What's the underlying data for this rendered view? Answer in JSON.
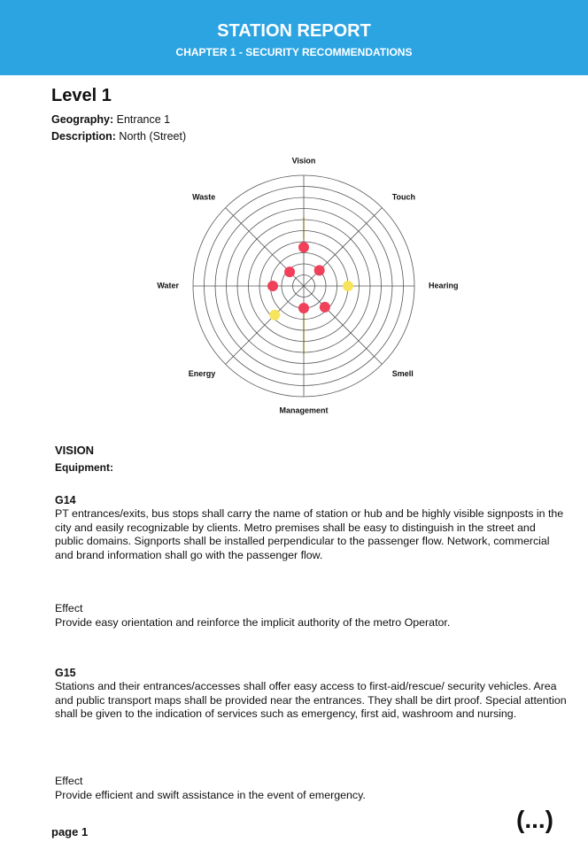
{
  "header": {
    "title": "STATION REPORT",
    "subtitle": "CHAPTER 1 - SECURITY RECOMMENDATIONS"
  },
  "level": "Level 1",
  "geography": {
    "label": "Geography:",
    "value": "Entrance 1"
  },
  "description": {
    "label": "Description:",
    "value": "North (Street)"
  },
  "chart_data": {
    "type": "radar",
    "categories": [
      "Vision",
      "Touch",
      "Hearing",
      "Smell",
      "Management",
      "Energy",
      "Water",
      "Waste"
    ],
    "values": [
      3.5,
      2,
      4,
      2.7,
      2,
      3.7,
      2.8,
      1.8
    ],
    "point_colors": [
      "#f0405a",
      "#f0405a",
      "#f8e45c",
      "#f0405a",
      "#f0405a",
      "#f8e45c",
      "#f0405a",
      "#f0405a"
    ],
    "rlim": [
      0,
      10
    ],
    "rticks": [
      1,
      2,
      3,
      4,
      5,
      6,
      7,
      8,
      9,
      10
    ],
    "grid": true
  },
  "section": {
    "title": "VISION",
    "subtitle": "Equipment:"
  },
  "items": [
    {
      "code": "G14",
      "text": "PT entrances/exits, bus stops shall carry the name of station or hub and be highly visible signposts in the city and easily recognizable by clients. Metro premises shall be easy to distinguish in the street and public domains. Signports shall be installed perpendicular to the passenger flow. Network, commercial and brand information shall go with the passenger flow.",
      "effect_label": "Effect",
      "effect": "Provide easy orientation and reinforce the implicit authority of the metro Operator."
    },
    {
      "code": "G15",
      "text": "Stations and their entrances/accesses shall offer easy access to first-aid/rescue/ security vehicles. Area and public transport maps shall be provided near the entrances. They shall be dirt proof. Special attention shall be given to the indication of services such as emergency, first aid, washroom and nursing.",
      "effect_label": "Effect",
      "effect": "Provide efficient and swift assistance in the event of emergency."
    }
  ],
  "footer": {
    "page": "page 1",
    "more": "(...)"
  }
}
